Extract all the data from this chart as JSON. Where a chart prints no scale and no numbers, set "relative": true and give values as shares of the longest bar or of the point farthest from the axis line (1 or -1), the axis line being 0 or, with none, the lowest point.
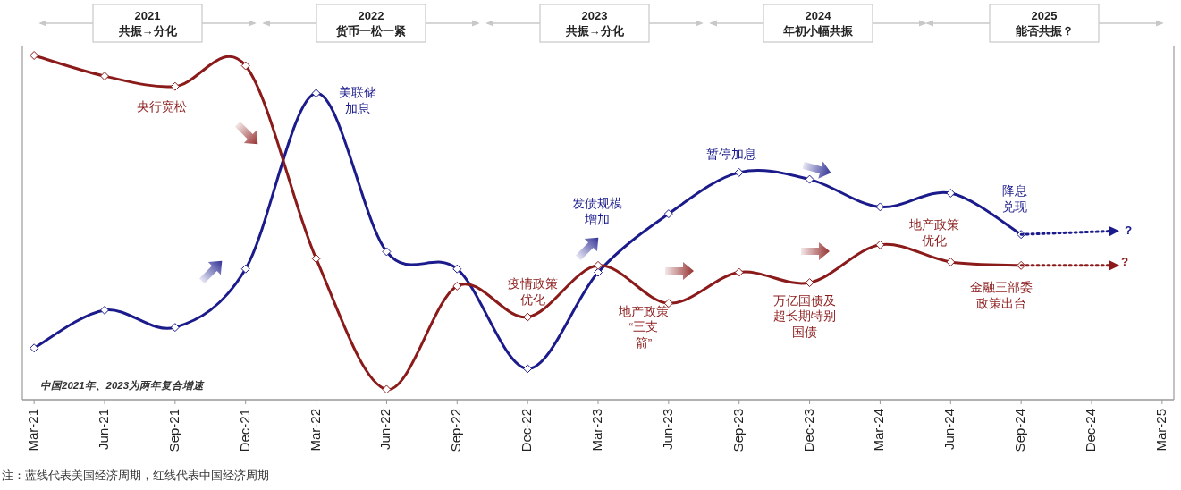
{
  "chart_data": {
    "type": "line",
    "relative": true,
    "marker": "diamond",
    "x": [
      "2021-03",
      "2021-06",
      "2021-09",
      "2021-12",
      "2022-03",
      "2022-06",
      "2022-09",
      "2022-12",
      "2023-03",
      "2023-06",
      "2023-09",
      "2023-12",
      "2024-03",
      "2024-06",
      "2024-09"
    ],
    "xlim": [
      "2021-02-16",
      "2025-03-16"
    ],
    "xticks": [
      {
        "value": "2021-03",
        "label": "Mar-21"
      },
      {
        "value": "2021-06",
        "label": "Jun-21"
      },
      {
        "value": "2021-09",
        "label": "Sep-21"
      },
      {
        "value": "2021-12",
        "label": "Dec-21"
      },
      {
        "value": "2022-03",
        "label": "Mar-22"
      },
      {
        "value": "2022-06",
        "label": "Jun-22"
      },
      {
        "value": "2022-09",
        "label": "Sep-22"
      },
      {
        "value": "2022-12",
        "label": "Dec-22"
      },
      {
        "value": "2023-03",
        "label": "Mar-23"
      },
      {
        "value": "2023-06",
        "label": "Jun-23"
      },
      {
        "value": "2023-09",
        "label": "Sep-23"
      },
      {
        "value": "2023-12",
        "label": "Dec-23"
      },
      {
        "value": "2024-03",
        "label": "Mar-24"
      },
      {
        "value": "2024-06",
        "label": "Jun-24"
      },
      {
        "value": "2024-09",
        "label": "Sep-24"
      },
      {
        "value": "2024-12",
        "label": "Dec-24"
      },
      {
        "value": "2025-03",
        "label": "Mar-25"
      }
    ],
    "series": [
      {
        "color": "#1b1b8c",
        "values": [
          0.15,
          0.26,
          0.21,
          0.38,
          0.89,
          0.43,
          0.38,
          0.09,
          0.37,
          0.54,
          0.66,
          0.64,
          0.56,
          0.6,
          0.48
        ]
      },
      {
        "color": "#8b1a1a",
        "values": [
          1,
          0.94,
          0.91,
          0.97,
          0.41,
          0.03,
          0.33,
          0.24,
          0.39,
          0.28,
          0.37,
          0.34,
          0.45,
          0.4,
          0.39
        ]
      },
      {
        "color": "#1b1b8c",
        "x": [
          "2024-09",
          "2025-01"
        ],
        "values": [
          0.48,
          0.49
        ],
        "line_style": "dotted",
        "marker": "none"
      },
      {
        "color": "#8b1a1a",
        "x": [
          "2024-09",
          "2025-01"
        ],
        "values": [
          0.39,
          0.39
        ],
        "line_style": "dotted",
        "marker": "none"
      }
    ],
    "annotations": [
      "2021\n共振→分化",
      "2022\n货币一松一紧",
      "2023\n共振→分化",
      "2024\n年初小幅共振",
      "2025\n能否共振？",
      "央行宽松",
      "美联储加息",
      "疫情政策优化",
      "发债规模增加",
      "地产政策“三支箭”",
      "暂停加息",
      "万亿国债及超长期特别国债",
      "地产政策优化",
      "降息兑现",
      "金融三部委政策出台",
      "?",
      "?",
      "中国2021年、2023为两年复合增速",
      "注：蓝线代表美国经济周期，红线代表中国经济周期"
    ]
  }
}
